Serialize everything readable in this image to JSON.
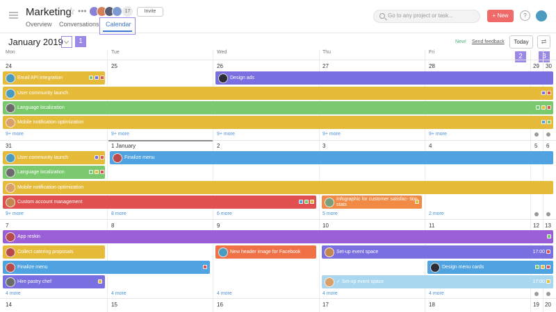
{
  "header": {
    "project_title": "Marketing",
    "tabs": [
      "Overview",
      "Conversations",
      "Calendar"
    ],
    "member_count": "17",
    "invite_label": "Invite",
    "search_placeholder": "Go to any project or task...",
    "new_label": "+ New",
    "help_label": "?"
  },
  "toolbar": {
    "month": "January 2019",
    "new_badge": "New!",
    "feedback": "Send feedback",
    "today": "Today",
    "swap_glyph": "⇄",
    "callouts": [
      "1",
      "2",
      "3"
    ]
  },
  "days_of_week": [
    "Mon",
    "Tue",
    "Wed",
    "Thu",
    "Fri"
  ],
  "weeks": [
    {
      "days": [
        "24",
        "25",
        "26",
        "27",
        "28",
        "29",
        "30"
      ],
      "more": [
        "9+ more",
        "9+ more",
        "9+ more",
        "9+ more",
        "9+ more"
      ]
    },
    {
      "days": [
        "31",
        "1 January",
        "2",
        "3",
        "4",
        "5",
        "6"
      ],
      "more": [
        "9+ more",
        "8 more",
        "6 more",
        "5 more",
        "2 more"
      ]
    },
    {
      "days": [
        "7",
        "8",
        "9",
        "10",
        "11",
        "12",
        "13"
      ],
      "more": [
        "4 more",
        "",
        "",
        "",
        ""
      ]
    },
    {
      "days": [
        "14",
        "15",
        "16",
        "17",
        "18",
        "19",
        "20"
      ],
      "more": []
    }
  ],
  "events": {
    "email_api": "Email API integration",
    "design_ads": "Design ads",
    "user_community_1": "User community launch",
    "language_1": "Language localization",
    "mobile_notif_1": "Mobile notification optimization",
    "user_community_2": "User community launch",
    "language_2": "Language localization",
    "finalize_menu_1": "Finalize menu",
    "mobile_notif_2": "Mobile notification optimization",
    "custom_account": "Custom account management",
    "infographic": "Infographic for customer satisfac- tion stats",
    "app_reskin": "App reskin",
    "collect_catering": "Collect catering proposals",
    "header_image": "New header image for Facebook",
    "event_space_1": "Set-up event space",
    "event_space_1_time": "17:00",
    "finalize_menu_2": "Finalize menu",
    "design_menu_cards": "Design menu cards",
    "hire_chef": "Hire pastry chef",
    "event_space_2": "✓ Set-up event space",
    "event_space_2_time": "17:00"
  },
  "colors": {
    "accent": "#3f78d4",
    "callout": "#9b87e8",
    "yellow": "#e6bb3a",
    "green": "#7bc96f",
    "purple": "#7a6fe0",
    "blue": "#4fa3e0",
    "red": "#e0504f",
    "orange": "#f08a45",
    "light_blue": "#a9d7f0",
    "new_button": "#f06a6a"
  },
  "icons": {
    "star": "☆",
    "more": "•••"
  }
}
